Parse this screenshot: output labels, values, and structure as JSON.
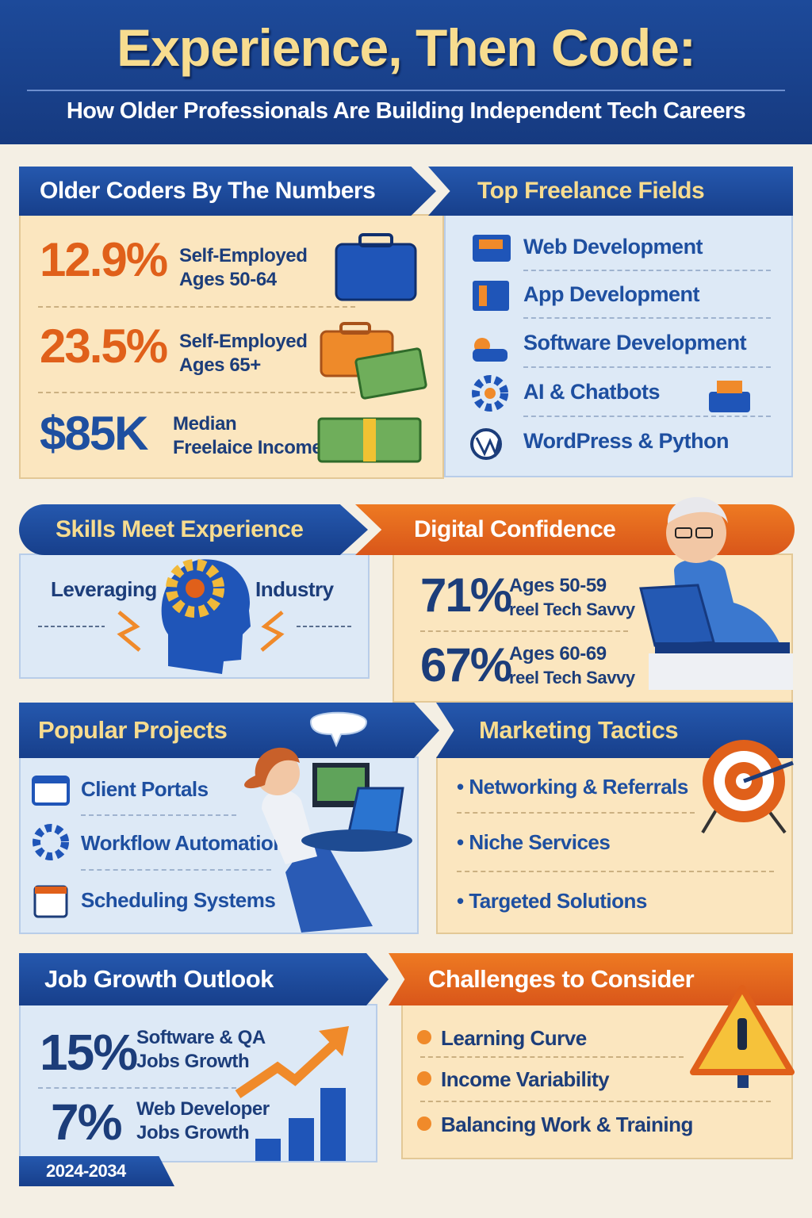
{
  "header": {
    "title": "Experience, Then Code:",
    "subtitle": "How Older Professionals Are Building Independent Tech Careers"
  },
  "numbers": {
    "title": "Older Coders By The Numbers",
    "stats": [
      {
        "value": "12.9%",
        "label": [
          "Self-Employed",
          "Ages 50-64"
        ]
      },
      {
        "value": "23.5%",
        "label": [
          "Self-Employed",
          "Ages 65+"
        ]
      },
      {
        "value": "$85K",
        "label": [
          "Median",
          "Freelaice Income"
        ]
      }
    ]
  },
  "fields": {
    "title": "Top Freelance Fields",
    "items": [
      "Web Development",
      "App Development",
      "Software Development",
      "AI & Chatbots",
      "WordPress & Python"
    ]
  },
  "skills": {
    "title": "Skills Meet Experience",
    "left": "Leveraging",
    "right": "Industry"
  },
  "confidence": {
    "title": "Digital Confidence",
    "stats": [
      {
        "value": "71%",
        "label": [
          "Ages 50-59",
          "reel Tech Savvy"
        ]
      },
      {
        "value": "67%",
        "label": [
          "Ages 60-69",
          "reel Tech Savvy"
        ]
      }
    ]
  },
  "projects": {
    "title": "Popular Projects",
    "items": [
      "Client Portals",
      "Workflow Automation",
      "Scheduling Systems"
    ]
  },
  "marketing": {
    "title": "Marketing Tactics",
    "items": [
      "Networking & Referrals",
      "Niche Services",
      "Targeted Solutions"
    ]
  },
  "growth": {
    "title": "Job Growth Outlook",
    "stats": [
      {
        "value": "15%",
        "label": [
          "Software & QA",
          "Jobs Growth"
        ]
      },
      {
        "value": "7%",
        "label": [
          "Web Developer",
          "Jobs Growth"
        ]
      }
    ],
    "period": "2024-2034"
  },
  "challenges": {
    "title": "Challenges to Consider",
    "items": [
      "Learning Curve",
      "Income Variability",
      "Balancing Work & Training"
    ]
  }
}
